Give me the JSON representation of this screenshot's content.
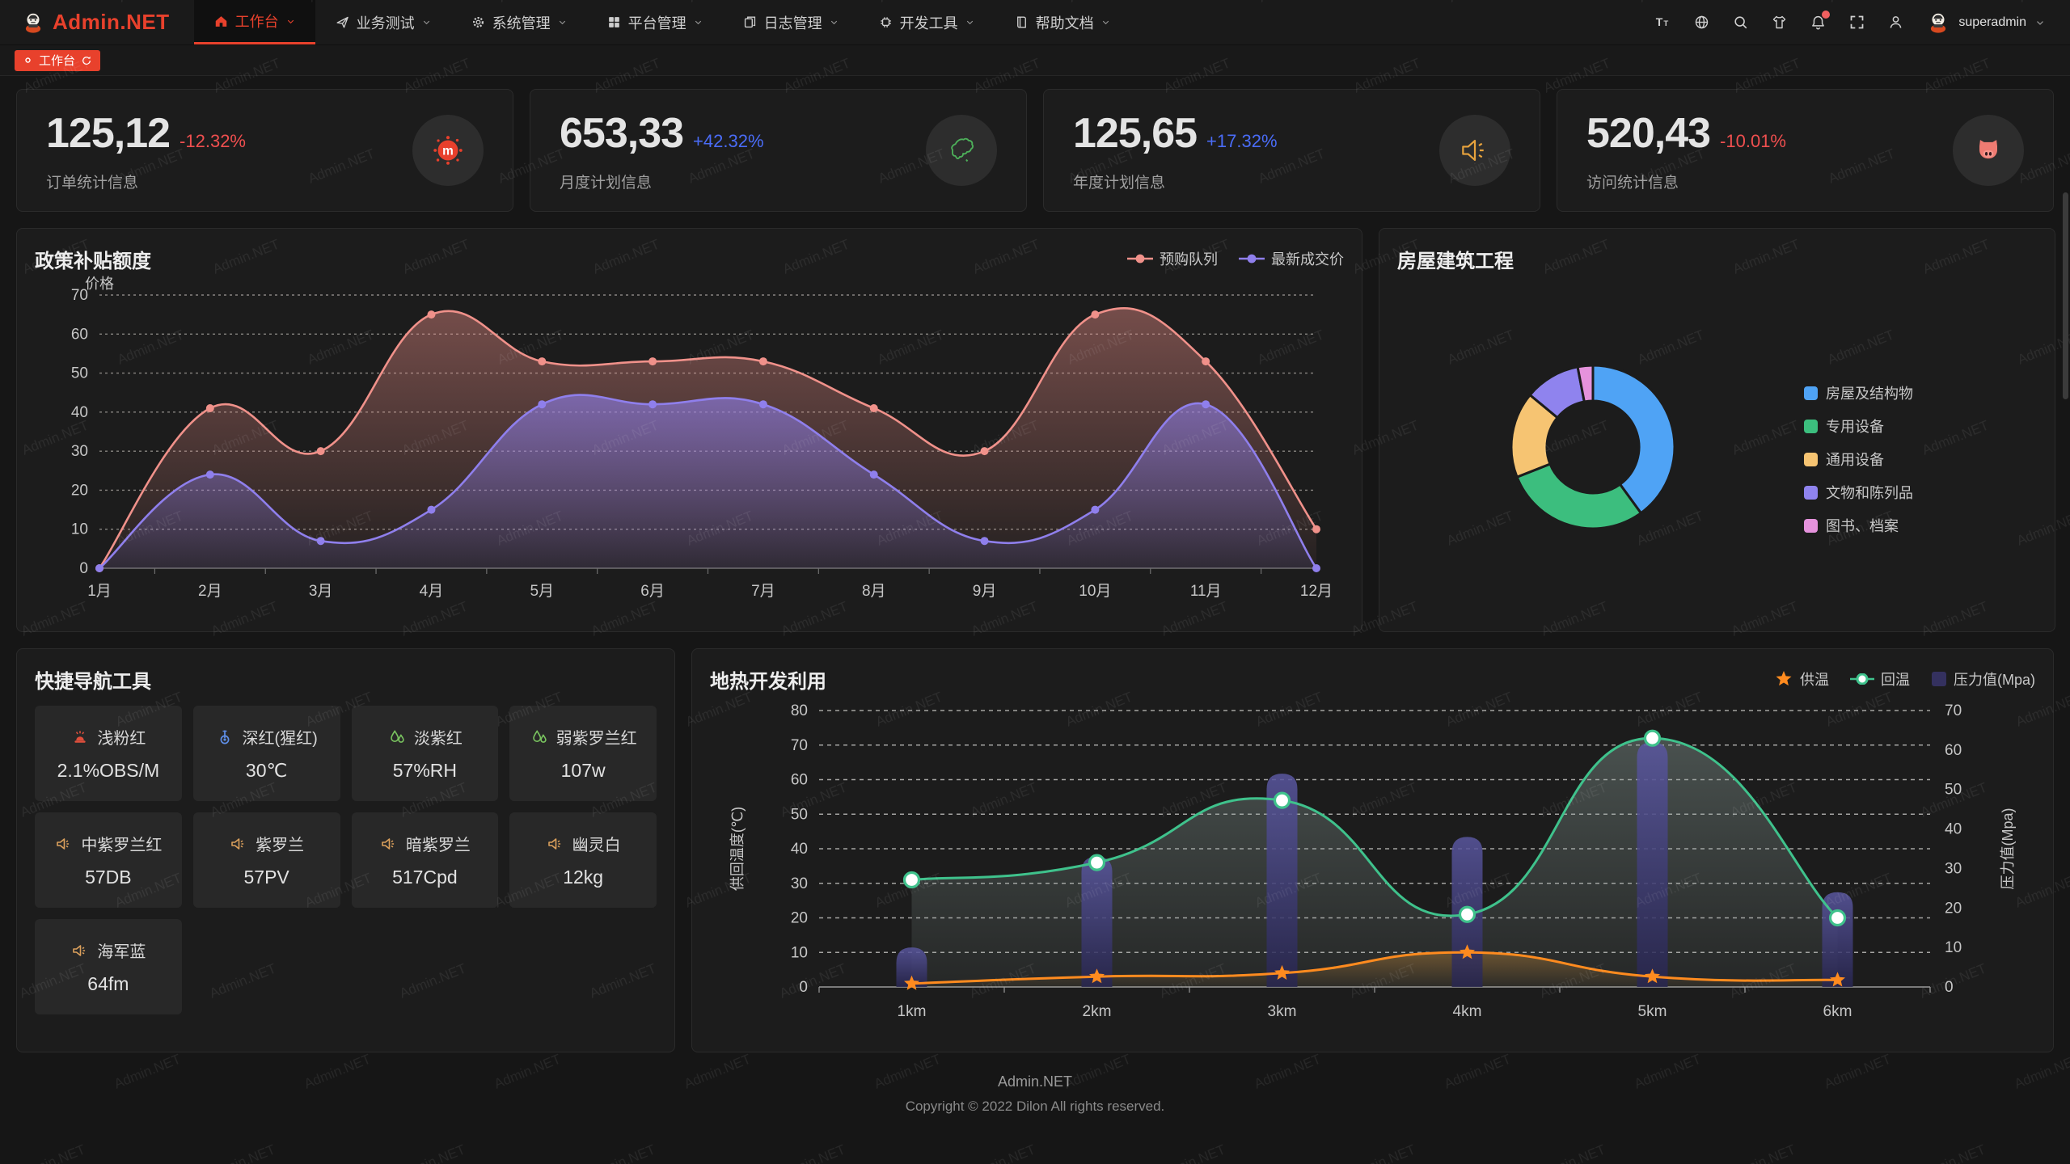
{
  "watermark": {
    "text": "Admin.NET"
  },
  "colors": {
    "accent": "#e8412c",
    "positive": "#4a6cf7",
    "negative": "#ef4f4f"
  },
  "navbar": {
    "logo_text": "Admin.NET",
    "menus": [
      {
        "label": "工作台",
        "icon": "home",
        "active": true
      },
      {
        "label": "业务测试",
        "icon": "send",
        "active": false
      },
      {
        "label": "系统管理",
        "icon": "gear",
        "active": false
      },
      {
        "label": "平台管理",
        "icon": "grid",
        "active": false
      },
      {
        "label": "日志管理",
        "icon": "doc",
        "active": false
      },
      {
        "label": "开发工具",
        "icon": "chip",
        "active": false
      },
      {
        "label": "帮助文档",
        "icon": "book",
        "active": false
      }
    ],
    "right_icons": [
      {
        "name": "font-size"
      },
      {
        "name": "language"
      },
      {
        "name": "search"
      },
      {
        "name": "theme"
      },
      {
        "name": "notification",
        "badge": true
      },
      {
        "name": "fullscreen"
      },
      {
        "name": "profile"
      }
    ],
    "user": "superadmin"
  },
  "tabbar": {
    "tabs": [
      {
        "label": "工作台",
        "active": true
      }
    ]
  },
  "stat_cards": [
    {
      "value": "125,12",
      "delta": "-12.32%",
      "delta_color": "#ef4f4f",
      "label": "订单统计信息",
      "icon": "splash",
      "icon_color": "#e8402c"
    },
    {
      "value": "653,33",
      "delta": "+42.32%",
      "delta_color": "#4a6cf7",
      "label": "月度计划信息",
      "icon": "china-map",
      "icon_color": "#4db05a"
    },
    {
      "value": "125,65",
      "delta": "+17.32%",
      "delta_color": "#4a6cf7",
      "label": "年度计划信息",
      "icon": "speaker",
      "icon_color": "#e8a33d"
    },
    {
      "value": "520,43",
      "delta": "-10.01%",
      "delta_color": "#ef4f4f",
      "label": "访问统计信息",
      "icon": "cat",
      "icon_color": "#ef7b72"
    }
  ],
  "chart_data": [
    {
      "id": "subsidy",
      "type": "area",
      "title": "政策补贴额度",
      "ylabel": "价格",
      "ylim": [
        0,
        70
      ],
      "grid": true,
      "legend_position": "top-right",
      "categories": [
        "1月",
        "2月",
        "3月",
        "4月",
        "5月",
        "6月",
        "7月",
        "8月",
        "9月",
        "10月",
        "11月",
        "12月"
      ],
      "series": [
        {
          "name": "预购队列",
          "color": "#f0918a",
          "values": [
            0,
            41,
            30,
            65,
            53,
            53,
            53,
            41,
            30,
            65,
            53,
            10
          ]
        },
        {
          "name": "最新成交价",
          "color": "#8f7fec",
          "values": [
            0,
            24,
            7,
            15,
            42,
            42,
            42,
            24,
            7,
            15,
            42,
            0
          ]
        }
      ]
    },
    {
      "id": "housing",
      "type": "pie",
      "title": "房屋建筑工程",
      "legend_position": "right",
      "labels": [
        "房屋及结构物",
        "专用设备",
        "通用设备",
        "文物和陈列品",
        "图书、档案"
      ],
      "values": [
        40,
        29,
        17,
        11,
        3
      ],
      "colors": [
        "#4fa3f5",
        "#3cbe7e",
        "#f6c472",
        "#8f83ee",
        "#e592dc"
      ]
    },
    {
      "id": "geothermal",
      "type": "line+bar",
      "title": "地热开发利用",
      "categories": [
        "1km",
        "2km",
        "3km",
        "4km",
        "5km",
        "6km"
      ],
      "ylabel_left": "供回温度(℃)",
      "ylim_left": [
        0,
        80
      ],
      "ylabel_right": "压力值(Mpa)",
      "ylim_right": [
        0,
        70
      ],
      "grid": true,
      "legend_position": "top-right",
      "series": [
        {
          "name": "供温",
          "type": "line",
          "marker": "star",
          "axis": "left",
          "color": "#ff8b1f",
          "values": [
            1,
            3,
            4,
            10,
            3,
            2
          ]
        },
        {
          "name": "回温",
          "type": "line",
          "marker": "circle",
          "axis": "left",
          "color": "#3fc28c",
          "values": [
            31,
            36,
            54,
            21,
            72,
            20
          ]
        },
        {
          "name": "压力值(Mpa)",
          "type": "bar",
          "axis": "right",
          "color": "#34315f",
          "values": [
            10,
            33,
            54,
            38,
            62,
            24
          ]
        }
      ]
    }
  ],
  "quick_nav": {
    "title": "快捷导航工具",
    "items": [
      {
        "icon": "heat",
        "icon_color": "#df4f3c",
        "label": "浅粉红",
        "value": "2.1%OBS/M"
      },
      {
        "icon": "thermometer",
        "icon_color": "#5f8fe8",
        "label": "深红(猩红)",
        "value": "30℃"
      },
      {
        "icon": "humidity",
        "icon_color": "#79c35f",
        "label": "淡紫红",
        "value": "57%RH"
      },
      {
        "icon": "humidity",
        "icon_color": "#79c35f",
        "label": "弱紫罗兰红",
        "value": "107w"
      },
      {
        "icon": "speaker",
        "icon_color": "#dba05c",
        "label": "中紫罗兰红",
        "value": "57DB"
      },
      {
        "icon": "speaker",
        "icon_color": "#dba05c",
        "label": "紫罗兰",
        "value": "57PV"
      },
      {
        "icon": "speaker",
        "icon_color": "#dba05c",
        "label": "暗紫罗兰",
        "value": "517Cpd"
      },
      {
        "icon": "speaker",
        "icon_color": "#dba05c",
        "label": "幽灵白",
        "value": "12kg"
      },
      {
        "icon": "speaker",
        "icon_color": "#dba05c",
        "label": "海军蓝",
        "value": "64fm"
      }
    ]
  },
  "footer": {
    "line1": "Admin.NET",
    "line2": "Copyright © 2022 Dilon All rights reserved."
  }
}
